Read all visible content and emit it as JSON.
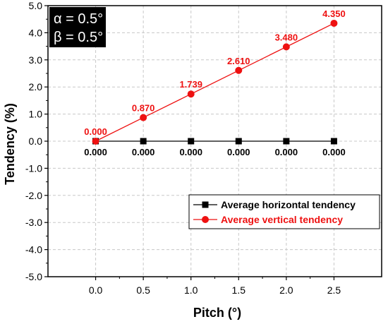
{
  "chart_data": {
    "type": "line",
    "xlabel": "Pitch (°)",
    "ylabel": "Tendency (%)",
    "xlim": [
      -0.5,
      3.0
    ],
    "ylim": [
      -5.0,
      5.0
    ],
    "x_ticks": [
      0.0,
      0.5,
      1.0,
      1.5,
      2.0,
      2.5
    ],
    "x_tick_labels": [
      "0.0",
      "0.5",
      "1.0",
      "1.5",
      "2.0",
      "2.5"
    ],
    "y_ticks": [
      -5.0,
      -4.0,
      -3.0,
      -2.0,
      -1.0,
      0.0,
      1.0,
      2.0,
      3.0,
      4.0,
      5.0
    ],
    "y_tick_labels": [
      "-5.0",
      "-4.0",
      "-3.0",
      "-2.0",
      "-1.0",
      "0.0",
      "1.0",
      "2.0",
      "3.0",
      "4.0",
      "5.0"
    ],
    "grid": true,
    "legend_position": "bottom-right",
    "annotation_box": {
      "lines": [
        "α = 0.5°",
        "β = 0.5°"
      ],
      "position": "top-left"
    },
    "x": [
      0.0,
      0.5,
      1.0,
      1.5,
      2.0,
      2.5
    ],
    "series": [
      {
        "name": "Average horizontal tendency",
        "values": [
          0.0,
          0.0,
          0.0,
          0.0,
          0.0,
          0.0
        ],
        "labels": [
          "0.000",
          "0.000",
          "0.000",
          "0.000",
          "0.000",
          "0.000"
        ],
        "color": "#000000",
        "marker": "square",
        "label_position": "below"
      },
      {
        "name": "Average vertical tendency",
        "values": [
          0.0,
          0.87,
          1.739,
          2.61,
          3.48,
          4.35
        ],
        "labels": [
          "0.000",
          "0.870",
          "1.739",
          "2.610",
          "3.480",
          "4.350"
        ],
        "color": "#ee1111",
        "marker": "circle",
        "label_position": "above"
      }
    ]
  }
}
